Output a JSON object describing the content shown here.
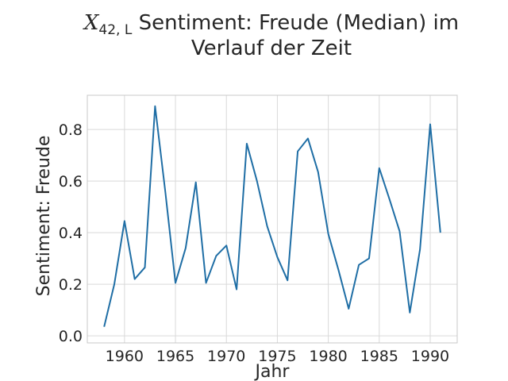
{
  "chart_data": {
    "type": "line",
    "title": {
      "math_base": "X",
      "math_sub": "42, L",
      "line1_rest": " Sentiment: Freude (Median) im",
      "line2": "Verlauf der Zeit"
    },
    "xlabel": "Jahr",
    "ylabel": "Sentiment: Freude",
    "xlim": [
      1956.35,
      1992.65
    ],
    "ylim": [
      -0.0275,
      0.9325
    ],
    "x_ticks": [
      1960,
      1965,
      1970,
      1975,
      1980,
      1985,
      1990
    ],
    "y_ticks": [
      0.0,
      0.2,
      0.4,
      0.6,
      0.8
    ],
    "x_tick_labels": [
      "1960",
      "1965",
      "1970",
      "1975",
      "1980",
      "1985",
      "1990"
    ],
    "y_tick_labels": [
      "0.0",
      "0.2",
      "0.4",
      "0.6",
      "0.8"
    ],
    "grid": true,
    "legend": "none",
    "series_color": "#1f6ea5",
    "series": [
      {
        "x": [
          1958,
          1959,
          1960,
          1961,
          1962,
          1963,
          1964,
          1965,
          1966,
          1967,
          1968,
          1969,
          1970,
          1971,
          1972,
          1973,
          1974,
          1975,
          1976,
          1977,
          1978,
          1979,
          1980,
          1981,
          1982,
          1983,
          1984,
          1985,
          1986,
          1987,
          1988,
          1989,
          1990,
          1991
        ],
        "values": [
          0.035,
          0.2,
          0.445,
          0.22,
          0.265,
          0.89,
          0.56,
          0.205,
          0.34,
          0.595,
          0.205,
          0.31,
          0.35,
          0.18,
          0.745,
          0.6,
          0.425,
          0.305,
          0.215,
          0.715,
          0.765,
          0.635,
          0.395,
          0.255,
          0.105,
          0.275,
          0.3,
          0.65,
          0.53,
          0.405,
          0.09,
          0.335,
          0.82,
          0.4
        ]
      }
    ]
  }
}
